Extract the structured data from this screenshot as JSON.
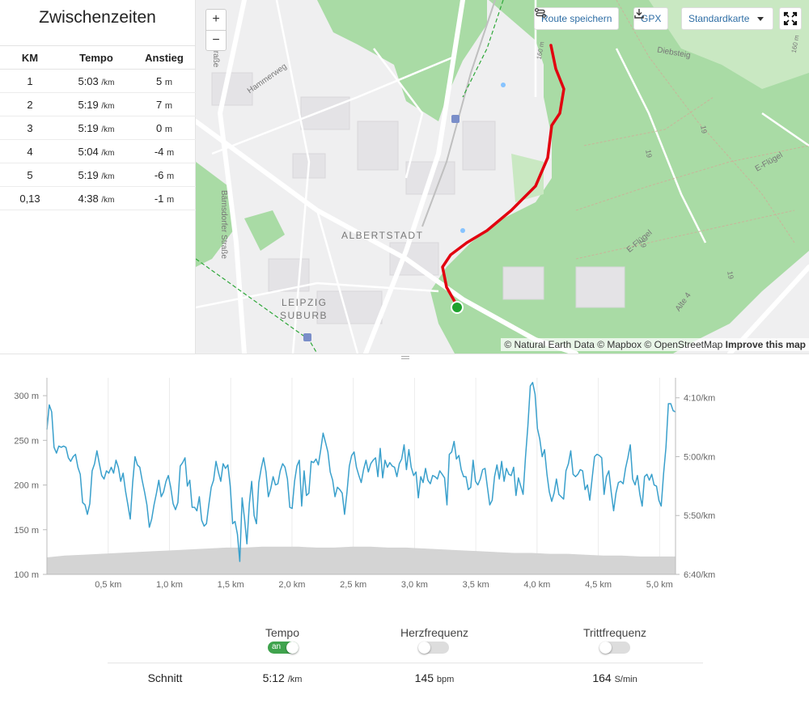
{
  "splits": {
    "title": "Zwischenzeiten",
    "headers": [
      "KM",
      "Tempo",
      "Anstieg"
    ],
    "rows": [
      {
        "km": "1",
        "tempo": "5:03",
        "tempo_unit": "/km",
        "ascent": "5",
        "ascent_unit": "m"
      },
      {
        "km": "2",
        "tempo": "5:19",
        "tempo_unit": "/km",
        "ascent": "7",
        "ascent_unit": "m"
      },
      {
        "km": "3",
        "tempo": "5:19",
        "tempo_unit": "/km",
        "ascent": "0",
        "ascent_unit": "m"
      },
      {
        "km": "4",
        "tempo": "5:04",
        "tempo_unit": "/km",
        "ascent": "-4",
        "ascent_unit": "m"
      },
      {
        "km": "5",
        "tempo": "5:19",
        "tempo_unit": "/km",
        "ascent": "-6",
        "ascent_unit": "m"
      },
      {
        "km": "0,13",
        "tempo": "4:38",
        "tempo_unit": "/km",
        "ascent": "-1",
        "ascent_unit": "m"
      }
    ]
  },
  "map": {
    "zoom_in": "+",
    "zoom_out": "−",
    "save_route": "Route speichern",
    "gpx": "GPX",
    "map_style": "Standardkarte",
    "labels": {
      "albertstadt": "ALBERTSTADT",
      "leipzig_line1": "LEIPZIG",
      "leipzig_line2": "SUBURB",
      "hammerweg": "Hammerweg",
      "baernsdorfer": "Bärnsdorfer Straße",
      "diebsteig": "Diebsteig",
      "e_fluegel_1": "E-Flügel",
      "e_fluegel_2": "E-Flügel",
      "alte4": "Alte 4",
      "strasse_frag": "traße",
      "n19a": "19",
      "n19b": "19",
      "n19c": "19",
      "n19d": "19",
      "m160a": "160 m",
      "m160b": "160 m"
    },
    "attribution_prefix": "© Natural Earth Data © Mapbox © OpenStreetMap",
    "attribution_link": "Improve this map",
    "colors": {
      "route": "#e2000f",
      "start": "#1fa22e",
      "forest": "#a9dba5",
      "water": "#86c3ff"
    }
  },
  "chart_data": {
    "type": "line",
    "x_unit": "km",
    "x_ticks": [
      "0,5 km",
      "1,0 km",
      "1,5 km",
      "2,0 km",
      "2,5 km",
      "3,0 km",
      "3,5 km",
      "4,0 km",
      "4,5 km",
      "5,0 km"
    ],
    "x_tick_values": [
      0.5,
      1.0,
      1.5,
      2.0,
      2.5,
      3.0,
      3.5,
      4.0,
      4.5,
      5.0
    ],
    "xlim": [
      0,
      5.13
    ],
    "y_left_ticks": [
      "100 m",
      "150 m",
      "200 m",
      "250 m",
      "300 m"
    ],
    "y_left_values": [
      100,
      150,
      200,
      250,
      300
    ],
    "y_left_lim": [
      100,
      320
    ],
    "y_right_ticks": [
      "4:10/km",
      "5:00/km",
      "5:50/km",
      "6:40/km"
    ],
    "y_right_values_sec": [
      250,
      300,
      350,
      400
    ],
    "y_right_lim_sec": [
      233,
      400
    ],
    "grid": "vertical",
    "series": [
      {
        "name": "Tempo",
        "axis": "right",
        "color": "#3aa0cc",
        "unit": "s/km",
        "values": [
          277,
          256,
          262,
          292,
          297,
          291,
          292,
          291,
          292,
          301,
          304,
          300,
          298,
          309,
          315,
          339,
          341,
          349,
          340,
          312,
          306,
          295,
          306,
          316,
          319,
          312,
          314,
          309,
          314,
          303,
          309,
          321,
          314,
          329,
          341,
          353,
          322,
          300,
          307,
          309,
          320,
          330,
          341,
          360,
          353,
          341,
          331,
          320,
          334,
          330,
          321,
          316,
          326,
          340,
          345,
          339,
          308,
          305,
          301,
          325,
          320,
          343,
          343,
          346,
          334,
          354,
          359,
          357,
          341,
          326,
          320,
          304,
          313,
          321,
          306,
          310,
          307,
          325,
          357,
          355,
          366,
          389,
          335,
          353,
          374,
          340,
          321,
          350,
          357,
          322,
          310,
          301,
          313,
          334,
          327,
          317,
          324,
          323,
          312,
          306,
          309,
          319,
          343,
          344,
          321,
          308,
          303,
          342,
          312,
          333,
          331,
          304,
          305,
          302,
          307,
          294,
          280,
          288,
          296,
          313,
          320,
          334,
          326,
          328,
          331,
          349,
          331,
          308,
          299,
          296,
          309,
          316,
          322,
          311,
          303,
          313,
          306,
          303,
          301,
          317,
          293,
          318,
          303,
          309,
          305,
          308,
          309,
          317,
          306,
          302,
          290,
          311,
          294,
          309,
          316,
          313,
          335,
          317,
          322,
          310,
          320,
          323,
          316,
          317,
          319,
          312,
          315,
          318,
          341,
          298,
          296,
          287,
          302,
          299,
          311,
          317,
          317,
          328,
          326,
          303,
          321,
          324,
          319,
          311,
          310,
          326,
          341,
          337,
          317,
          307,
          319,
          304,
          321,
          310,
          315,
          316,
          309,
          333,
          318,
          325,
          332,
          300,
          274,
          240,
          237,
          247,
          276,
          285,
          300,
          294,
          315,
          330,
          338,
          331,
          319,
          332,
          334,
          336,
          312,
          306,
          295,
          315,
          317,
          315,
          311,
          312,
          328,
          324,
          337,
          318,
          300,
          298,
          299,
          301,
          332,
          317,
          312,
          330,
          346,
          331,
          322,
          321,
          323,
          310,
          301,
          290,
          319,
          324,
          316,
          332,
          342,
          317,
          315,
          320,
          315,
          324,
          325,
          337,
          342,
          314,
          292,
          255,
          255,
          261,
          262
        ]
      },
      {
        "name": "Höhe",
        "axis": "left",
        "color": "#d4d4d4",
        "unit": "m",
        "values": [
          119,
          121,
          122,
          123,
          124,
          125,
          126,
          127,
          128,
          129,
          130,
          130,
          131,
          131,
          131,
          130,
          130,
          131,
          131,
          130,
          130,
          129,
          128,
          127,
          126,
          125,
          124,
          124,
          123,
          123,
          122,
          121,
          121,
          120,
          120,
          120
        ]
      }
    ]
  },
  "stats": {
    "tempo_label": "Tempo",
    "tempo_toggle": "an",
    "hr_label": "Herzfrequenz",
    "cad_label": "Trittfrequenz",
    "avg_label": "Schnitt",
    "tempo_avg": "5:12",
    "tempo_unit": "/km",
    "hr_avg": "145",
    "hr_unit": "bpm",
    "cad_avg": "164",
    "cad_unit": "S/min"
  }
}
